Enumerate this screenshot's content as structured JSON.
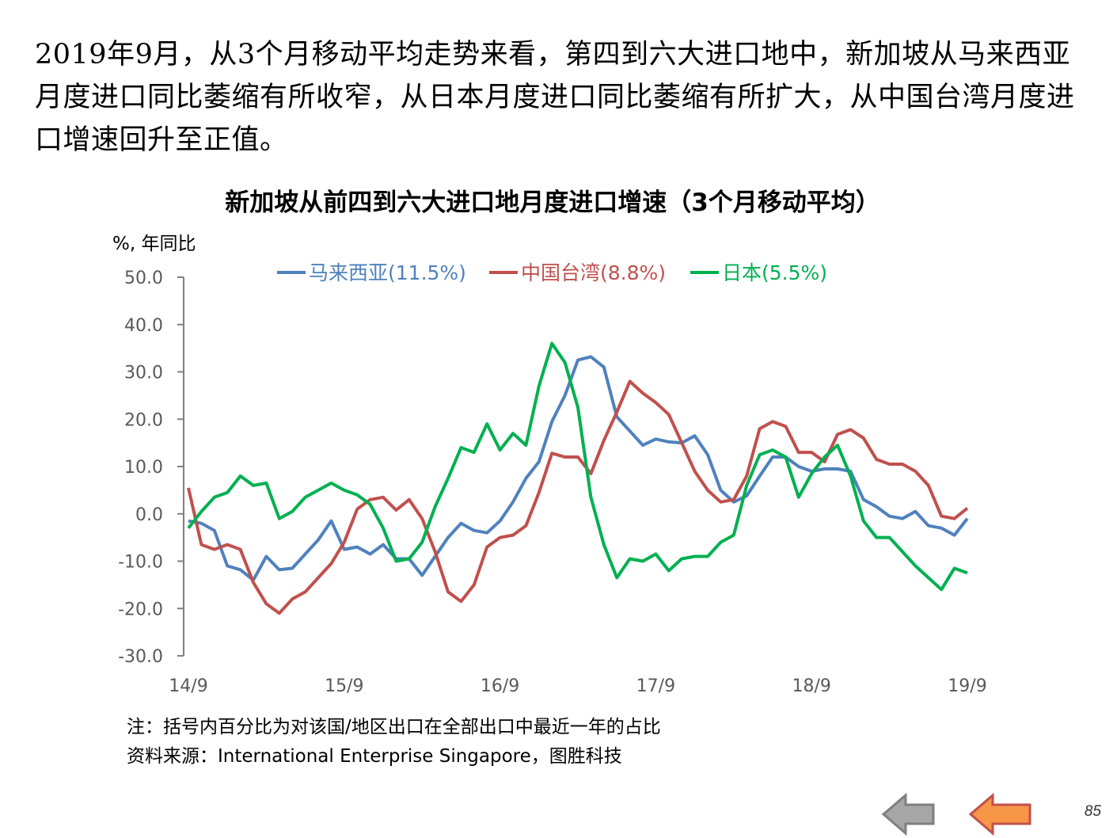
{
  "headline": "2019年9月，从3个月移动平均走势来看，第四到六大进口地中，新加坡从马来西亚月度进口同比萎缩有所收窄，从日本月度进口同比萎缩有所扩大，从中国台湾月度进口增速回升至正值。",
  "notes": {
    "note": "注：括号内百分比为对该国/地区出口在全部出口中最近一年的占比",
    "source": "资料来源：International  Enterprise  Singapore，图胜科技"
  },
  "page_number": "85",
  "nav": {
    "back_icon": "arrow-left-gray",
    "prev_icon": "arrow-left-orange"
  },
  "chart_data": {
    "type": "line",
    "title": "新加坡从前四到六大进口地月度进口增速（3个月移动平均）",
    "ylabel": "%, 年同比",
    "xlabel": "",
    "ylim": [
      -30,
      50
    ],
    "yticks": [
      "50.0",
      "40.0",
      "30.0",
      "20.0",
      "10.0",
      "0.0",
      "-10.0",
      "-20.0",
      "-30.0"
    ],
    "xticks": [
      "14/9",
      "15/9",
      "16/9",
      "17/9",
      "18/9",
      "19/9"
    ],
    "grid": false,
    "legend_position": "top",
    "x": [
      "14/9",
      "14/10",
      "14/11",
      "14/12",
      "15/1",
      "15/2",
      "15/3",
      "15/4",
      "15/5",
      "15/6",
      "15/7",
      "15/8",
      "15/9",
      "15/10",
      "15/11",
      "15/12",
      "16/1",
      "16/2",
      "16/3",
      "16/4",
      "16/5",
      "16/6",
      "16/7",
      "16/8",
      "16/9",
      "16/10",
      "16/11",
      "16/12",
      "17/1",
      "17/2",
      "17/3",
      "17/4",
      "17/5",
      "17/6",
      "17/7",
      "17/8",
      "17/9",
      "17/10",
      "17/11",
      "17/12",
      "18/1",
      "18/2",
      "18/3",
      "18/4",
      "18/5",
      "18/6",
      "18/7",
      "18/8",
      "18/9",
      "18/10",
      "18/11",
      "18/12",
      "19/1",
      "19/2",
      "19/3",
      "19/4",
      "19/5",
      "19/6",
      "19/7",
      "19/8",
      "19/9"
    ],
    "series": [
      {
        "name": "马来西亚(11.5%)",
        "color": "#4F81BD",
        "values": [
          -1.5,
          -2.0,
          -3.5,
          -11.0,
          -11.8,
          -14.0,
          -9.0,
          -11.8,
          -11.5,
          -8.5,
          -5.5,
          -1.5,
          -7.5,
          -7.0,
          -8.5,
          -6.5,
          -9.5,
          -9.5,
          -13.0,
          -9.0,
          -5.0,
          -2.0,
          -3.5,
          -4.0,
          -1.5,
          2.5,
          7.5,
          11.0,
          19.5,
          25.0,
          32.5,
          33.2,
          31.0,
          20.5,
          17.5,
          14.5,
          15.8,
          15.2,
          15.0,
          16.5,
          12.5,
          5.0,
          2.5,
          3.8,
          8.0,
          12.0,
          12.0,
          10.0,
          9.0,
          9.5,
          9.5,
          9.0,
          3.0,
          1.5,
          -0.5,
          -1.0,
          0.5,
          -2.5,
          -3.0,
          -4.5,
          -1.0
        ]
      },
      {
        "name": "中国台湾(8.8%)",
        "color": "#C0504D",
        "values": [
          5.5,
          -6.5,
          -7.5,
          -6.5,
          -7.5,
          -14.5,
          -19.0,
          -21.0,
          -18.0,
          -16.5,
          -13.5,
          -10.5,
          -6.0,
          1.0,
          3.0,
          3.5,
          0.8,
          3.0,
          -1.0,
          -8.0,
          -16.5,
          -18.5,
          -15.0,
          -7.0,
          -5.0,
          -4.5,
          -2.5,
          4.5,
          12.8,
          12.0,
          12.0,
          8.5,
          15.5,
          21.5,
          28.0,
          25.5,
          23.5,
          21.0,
          15.0,
          9.0,
          5.0,
          2.5,
          3.0,
          8.0,
          18.0,
          19.5,
          18.5,
          13.0,
          13.0,
          11.0,
          16.8,
          17.8,
          16.0,
          11.5,
          10.5,
          10.5,
          9.0,
          6.0,
          -0.5,
          -1.0,
          1.2
        ]
      },
      {
        "name": "日本(5.5%)",
        "color": "#00B050",
        "values": [
          -3.0,
          0.5,
          3.5,
          4.5,
          8.0,
          6.0,
          6.5,
          -1.0,
          0.5,
          3.5,
          5.0,
          6.5,
          5.0,
          4.0,
          2.0,
          -3.0,
          -10.0,
          -9.5,
          -6.0,
          1.5,
          7.5,
          14.0,
          13.0,
          19.0,
          13.5,
          17.0,
          14.5,
          27.0,
          36.0,
          32.0,
          22.5,
          3.5,
          -6.5,
          -13.5,
          -9.5,
          -10.0,
          -8.5,
          -12.0,
          -9.5,
          -9.0,
          -9.0,
          -6.0,
          -4.5,
          6.0,
          12.5,
          13.5,
          12.0,
          3.5,
          8.5,
          12.0,
          14.5,
          8.0,
          -1.5,
          -5.0,
          -5.0,
          -8.0,
          -11.0,
          -13.5,
          -16.0,
          -11.5,
          -12.5
        ]
      }
    ]
  }
}
